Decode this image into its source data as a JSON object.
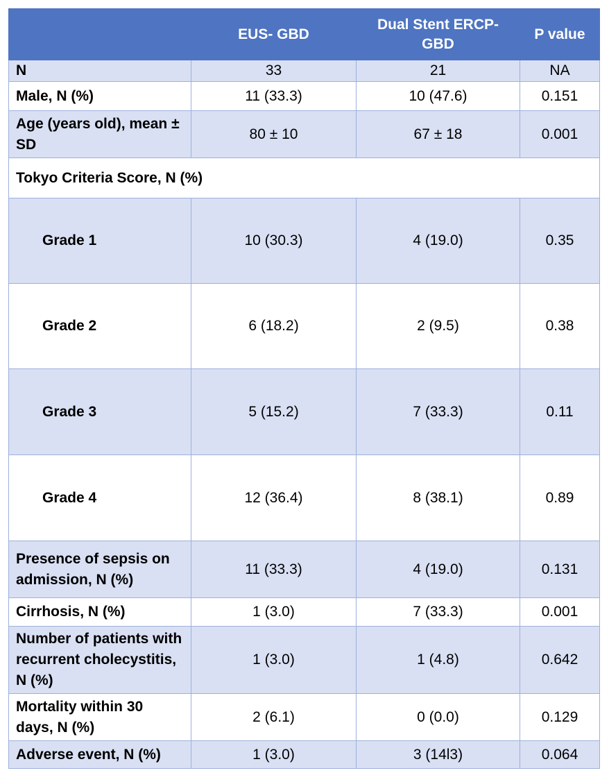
{
  "header": {
    "col0": "",
    "col1": "EUS- GBD",
    "col2": "Dual Stent ERCP-GBD",
    "col3": "P value"
  },
  "rows": [
    {
      "label": "N",
      "eus": "33",
      "ercp": "21",
      "p": "NA"
    },
    {
      "label": "Male, N (%)",
      "eus": "11 (33.3)",
      "ercp": "10 (47.6)",
      "p": "0.151"
    },
    {
      "label": "Age (years old), mean ± SD",
      "eus": "80 ± 10",
      "ercp": "67 ± 18",
      "p": "0.001"
    },
    {
      "label": "Tokyo Criteria Score, N (%)"
    },
    {
      "label": "Grade 1",
      "eus": "10 (30.3)",
      "ercp": "4 (19.0)",
      "p": "0.35"
    },
    {
      "label": "Grade 2",
      "eus": "6 (18.2)",
      "ercp": "2 (9.5)",
      "p": "0.38"
    },
    {
      "label": "Grade 3",
      "eus": "5 (15.2)",
      "ercp": "7 (33.3)",
      "p": "0.11"
    },
    {
      "label": "Grade 4",
      "eus": "12 (36.4)",
      "ercp": "8 (38.1)",
      "p": "0.89"
    },
    {
      "label": "Presence of sepsis on admission, N (%)",
      "eus": "11 (33.3)",
      "ercp": "4 (19.0)",
      "p": "0.131"
    },
    {
      "label": "Cirrhosis, N (%)",
      "eus": "1 (3.0)",
      "ercp": "7 (33.3)",
      "p": "0.001"
    },
    {
      "label": "Number of patients with recurrent cholecystitis, N (%)",
      "eus": "1 (3.0)",
      "ercp": "1 (4.8)",
      "p": "0.642"
    },
    {
      "label": "Mortality within 30 days, N (%)",
      "eus": "2 (6.1)",
      "ercp": "0 (0.0)",
      "p": "0.129"
    },
    {
      "label": "Adverse event, N (%)",
      "eus": "1 (3.0)",
      "ercp": "3 (14l3)",
      "p": "0.064"
    }
  ]
}
